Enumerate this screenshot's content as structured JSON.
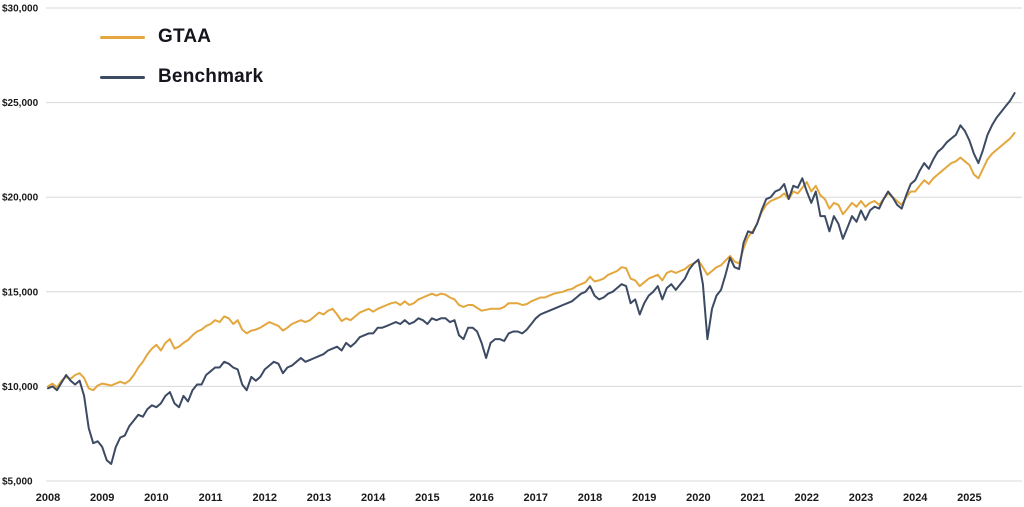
{
  "chart_data": {
    "type": "line",
    "title": "",
    "x_unit": "month",
    "x_start_year": 2008,
    "x_tick_years": [
      2008,
      2009,
      2010,
      2011,
      2012,
      2013,
      2014,
      2015,
      2016,
      2017,
      2018,
      2019,
      2020,
      2021,
      2022,
      2023,
      2024,
      2025
    ],
    "y_ticks": [
      5000,
      10000,
      15000,
      20000,
      25000,
      30000
    ],
    "y_tick_labels": [
      "$5,000",
      "$10,000",
      "$15,000",
      "$20,000",
      "$25,000",
      "$30,000"
    ],
    "ylim": [
      5000,
      30000
    ],
    "grid": "horizontal",
    "legend_position": "top-left",
    "colors": {
      "grid": "#d8d8d8",
      "axis_text": "#1a1a1a"
    },
    "series": [
      {
        "name": "GTAA",
        "color": "#E4A73E",
        "values": [
          10000,
          10150,
          9950,
          10300,
          10500,
          10400,
          10600,
          10700,
          10450,
          9900,
          9800,
          10050,
          10150,
          10100,
          10050,
          10150,
          10250,
          10150,
          10300,
          10600,
          11000,
          11300,
          11700,
          12000,
          12200,
          11900,
          12300,
          12500,
          12000,
          12100,
          12300,
          12450,
          12700,
          12900,
          13000,
          13200,
          13300,
          13500,
          13400,
          13700,
          13600,
          13300,
          13500,
          13000,
          12800,
          12950,
          13000,
          13100,
          13250,
          13400,
          13300,
          13200,
          12950,
          13100,
          13300,
          13400,
          13500,
          13400,
          13500,
          13700,
          13900,
          13800,
          14000,
          14100,
          13800,
          13450,
          13600,
          13500,
          13700,
          13900,
          14000,
          14100,
          13950,
          14100,
          14200,
          14300,
          14400,
          14450,
          14300,
          14500,
          14300,
          14400,
          14600,
          14700,
          14800,
          14900,
          14800,
          14900,
          14850,
          14700,
          14600,
          14300,
          14200,
          14300,
          14300,
          14150,
          14000,
          14050,
          14100,
          14100,
          14100,
          14200,
          14400,
          14400,
          14400,
          14300,
          14350,
          14500,
          14600,
          14700,
          14700,
          14800,
          14900,
          14950,
          15000,
          15100,
          15150,
          15300,
          15400,
          15500,
          15800,
          15550,
          15600,
          15700,
          15900,
          16000,
          16100,
          16300,
          16250,
          15700,
          15600,
          15300,
          15500,
          15700,
          15800,
          15900,
          15600,
          16000,
          16100,
          16000,
          16100,
          16200,
          16400,
          16500,
          16650,
          16300,
          15900,
          16100,
          16300,
          16400,
          16650,
          16900,
          16600,
          16500,
          17300,
          17900,
          18200,
          18600,
          19200,
          19600,
          19800,
          19900,
          20000,
          20200,
          19900,
          20300,
          20200,
          20500,
          20800,
          20300,
          20600,
          20100,
          19900,
          19400,
          19700,
          19600,
          19100,
          19400,
          19700,
          19500,
          19800,
          19500,
          19700,
          19800,
          19600,
          19900,
          20200,
          20000,
          19800,
          19600,
          20000,
          20300,
          20300,
          20600,
          20900,
          20700,
          21000,
          21200,
          21400,
          21600,
          21800,
          21900,
          22100,
          21900,
          21700,
          21200,
          21000,
          21500,
          22000,
          22300,
          22500,
          22700,
          22900,
          23100,
          23400
        ]
      },
      {
        "name": "Benchmark",
        "color": "#3C4A63",
        "values": [
          9900,
          10000,
          9800,
          10200,
          10600,
          10300,
          10100,
          10300,
          9500,
          7800,
          7000,
          7100,
          6800,
          6100,
          5900,
          6800,
          7300,
          7400,
          7900,
          8200,
          8500,
          8400,
          8800,
          9000,
          8900,
          9100,
          9500,
          9700,
          9100,
          8900,
          9500,
          9200,
          9800,
          10100,
          10100,
          10600,
          10800,
          11000,
          11000,
          11300,
          11200,
          11000,
          10900,
          10100,
          9800,
          10500,
          10300,
          10500,
          10900,
          11100,
          11300,
          11200,
          10700,
          11000,
          11100,
          11300,
          11500,
          11300,
          11400,
          11500,
          11600,
          11700,
          11900,
          12000,
          12100,
          11900,
          12300,
          12100,
          12300,
          12600,
          12700,
          12800,
          12800,
          13100,
          13100,
          13200,
          13300,
          13400,
          13300,
          13500,
          13300,
          13400,
          13600,
          13500,
          13300,
          13600,
          13500,
          13600,
          13600,
          13400,
          13500,
          12700,
          12500,
          13100,
          13100,
          12900,
          12300,
          11500,
          12300,
          12500,
          12500,
          12400,
          12800,
          12900,
          12900,
          12800,
          13000,
          13300,
          13600,
          13800,
          13900,
          14000,
          14100,
          14200,
          14300,
          14400,
          14500,
          14700,
          14900,
          15000,
          15300,
          14800,
          14600,
          14700,
          14900,
          15000,
          15200,
          15400,
          15300,
          14400,
          14600,
          13800,
          14400,
          14800,
          15000,
          15300,
          14600,
          15200,
          15400,
          15100,
          15400,
          15700,
          16200,
          16500,
          16700,
          15400,
          12500,
          14100,
          14800,
          15100,
          15900,
          16800,
          16300,
          16200,
          17600,
          18200,
          18100,
          18600,
          19300,
          19900,
          20000,
          20300,
          20400,
          20700,
          19900,
          20600,
          20500,
          21000,
          20300,
          19700,
          20300,
          19000,
          19000,
          18200,
          19000,
          18600,
          17800,
          18400,
          19000,
          18700,
          19300,
          18800,
          19300,
          19500,
          19400,
          19900,
          20300,
          20000,
          19600,
          19400,
          20100,
          20700,
          20900,
          21400,
          21800,
          21500,
          22000,
          22400,
          22600,
          22900,
          23100,
          23300,
          23800,
          23500,
          23000,
          22300,
          21800,
          22500,
          23300,
          23800,
          24200,
          24500,
          24800,
          25100,
          25500
        ]
      }
    ]
  },
  "legend": {
    "items": [
      {
        "label": "GTAA"
      },
      {
        "label": "Benchmark"
      }
    ]
  }
}
